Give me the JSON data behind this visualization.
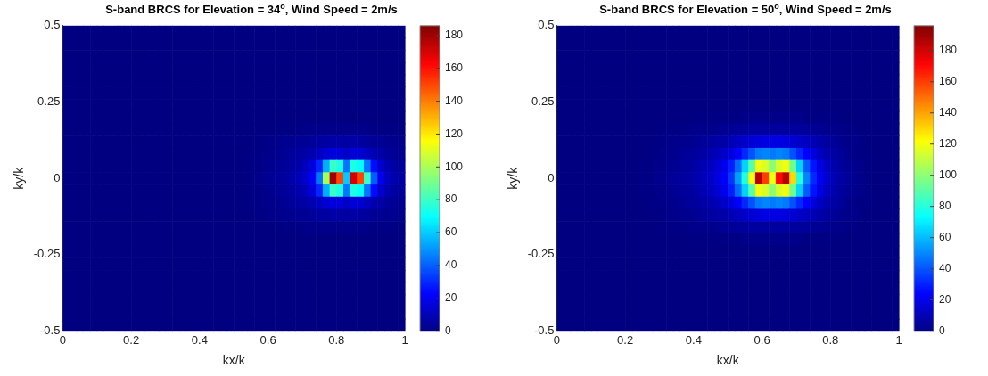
{
  "chart_data": [
    {
      "type": "heatmap",
      "title": "S-band BRCS for Elevation = 34$^{o}$, Wind Speed = 2m/s",
      "xlabel": "kx/k",
      "ylabel": "ky/k",
      "xlim": [
        0,
        1
      ],
      "ylim": [
        -0.5,
        0.5
      ],
      "xticks": [
        0,
        0.2,
        0.4,
        0.6,
        0.8,
        1
      ],
      "yticks": [
        -0.5,
        -0.25,
        0,
        0.25,
        0.5
      ],
      "clim": [
        0,
        186
      ],
      "cticks": [
        0,
        20,
        40,
        60,
        80,
        100,
        120,
        140,
        160,
        180
      ],
      "grid": false,
      "cells": [
        [
          0,
          0,
          0,
          0,
          0,
          0,
          0,
          0,
          0,
          0,
          0,
          0,
          0,
          0,
          0,
          0,
          0,
          0,
          0,
          0,
          0,
          0,
          0,
          0,
          0,
          0,
          0,
          0,
          0,
          0,
          0,
          0,
          0,
          0,
          0,
          0,
          0,
          0,
          0,
          0,
          0,
          0,
          0,
          0,
          0,
          0,
          0,
          0,
          0,
          0
        ],
        [
          0,
          0,
          0,
          0,
          0,
          0,
          0,
          0,
          0,
          0,
          0,
          0,
          0,
          0,
          0,
          0,
          0,
          0,
          0,
          0,
          0,
          0,
          0,
          0,
          0,
          0,
          0,
          0,
          0,
          0,
          0,
          0,
          0,
          0,
          0,
          0,
          0,
          0,
          0,
          0,
          0,
          0,
          0,
          0,
          0,
          0,
          0,
          0,
          0,
          0
        ],
        [
          0,
          0,
          0,
          0,
          0,
          0,
          0,
          0,
          0,
          0,
          0,
          0,
          0,
          0,
          0,
          0,
          0,
          0,
          0,
          0,
          0,
          0,
          0,
          0,
          0,
          0,
          0,
          0,
          0,
          0,
          0,
          0,
          0,
          0,
          0,
          0,
          0,
          0,
          0,
          0,
          0,
          0,
          0,
          0,
          0,
          0,
          0,
          0,
          0,
          0
        ],
        [
          0,
          0,
          0,
          0,
          0,
          0,
          0,
          0,
          0,
          0,
          0,
          0,
          0,
          0,
          0,
          0,
          0,
          0,
          0,
          0,
          0,
          0,
          0,
          0,
          0,
          0,
          0,
          0,
          0,
          0,
          0,
          0,
          0,
          0,
          0,
          0,
          0,
          0,
          0,
          0,
          0,
          0,
          0,
          0,
          0,
          0,
          0,
          0,
          0,
          0
        ],
        [
          0,
          0,
          0,
          0,
          0,
          0,
          0,
          0,
          0,
          0,
          0,
          0,
          0,
          0,
          0,
          0,
          0,
          0,
          0,
          0,
          0,
          0,
          0,
          0,
          0,
          0,
          0,
          0,
          0,
          0,
          0,
          0,
          0,
          0,
          0,
          0,
          0,
          0,
          0,
          0,
          0,
          0,
          0,
          0,
          0,
          0,
          0,
          0,
          0,
          0
        ],
        [
          0,
          0,
          0,
          0,
          0,
          0,
          0,
          0,
          0,
          0,
          0,
          0,
          0,
          0,
          0,
          0,
          0,
          0,
          0,
          0,
          0,
          0,
          0,
          0,
          0,
          0,
          0,
          0,
          0,
          0,
          0,
          0,
          0,
          0,
          0,
          0,
          0,
          0,
          0,
          0,
          0,
          0,
          0,
          0,
          0,
          0,
          0,
          0,
          0,
          0
        ],
        [
          0,
          0,
          0,
          0,
          0,
          0,
          0,
          0,
          0,
          0,
          0,
          0,
          0,
          0,
          0,
          0,
          0,
          0,
          0,
          0,
          0,
          0,
          0,
          0,
          0,
          0,
          0,
          0,
          0,
          0,
          0,
          0,
          0,
          0,
          0,
          0,
          0,
          0,
          0,
          0,
          0,
          0,
          0,
          0,
          0,
          0,
          0,
          0,
          0,
          0
        ],
        [
          0,
          0,
          0,
          0,
          0,
          0,
          0,
          0,
          0,
          0,
          0,
          0,
          0,
          0,
          0,
          0,
          0,
          0,
          0,
          0,
          0,
          0,
          0,
          0,
          0,
          0,
          0,
          0,
          0,
          0,
          0,
          0,
          0,
          0,
          0,
          0,
          0,
          0,
          0,
          0,
          0,
          0,
          0,
          0,
          0,
          0,
          0,
          0,
          0,
          0
        ],
        [
          0,
          0,
          0,
          0,
          0,
          0,
          0,
          0,
          0,
          0,
          0,
          0,
          0,
          0,
          0,
          0,
          0,
          0,
          0,
          0,
          0,
          0,
          0,
          0,
          0,
          0,
          0,
          0,
          0,
          0,
          0,
          1,
          1,
          1,
          1,
          2,
          2,
          2,
          2,
          2,
          2,
          2,
          2,
          2,
          2,
          1,
          1,
          1,
          1,
          0
        ],
        [
          0,
          0,
          0,
          0,
          0,
          0,
          0,
          0,
          0,
          0,
          0,
          0,
          0,
          0,
          0,
          0,
          0,
          0,
          0,
          0,
          0,
          0,
          0,
          0,
          0,
          0,
          0,
          0,
          1,
          1,
          2,
          2,
          3,
          3,
          4,
          4,
          5,
          6,
          6,
          7,
          7,
          6,
          7,
          6,
          5,
          4,
          4,
          3,
          3,
          2
        ],
        [
          0,
          0,
          0,
          0,
          0,
          0,
          0,
          0,
          0,
          0,
          0,
          0,
          0,
          0,
          0,
          0,
          0,
          0,
          0,
          0,
          0,
          0,
          0,
          0,
          0,
          0,
          0,
          1,
          1,
          2,
          2,
          3,
          4,
          5,
          6,
          7,
          9,
          12,
          15,
          17,
          16,
          13,
          16,
          15,
          12,
          9,
          7,
          5,
          4,
          3
        ],
        [
          0,
          0,
          0,
          0,
          0,
          0,
          0,
          0,
          0,
          0,
          0,
          0,
          0,
          0,
          0,
          0,
          0,
          0,
          0,
          0,
          0,
          0,
          0,
          0,
          0,
          0,
          0,
          1,
          1,
          2,
          3,
          4,
          5,
          6,
          8,
          11,
          17,
          30,
          55,
          80,
          75,
          45,
          75,
          70,
          45,
          25,
          14,
          9,
          6,
          5
        ],
        [
          0,
          0,
          0,
          0,
          0,
          0,
          0,
          0,
          0,
          0,
          0,
          0,
          0,
          0,
          0,
          0,
          0,
          0,
          0,
          0,
          0,
          0,
          0,
          0,
          0,
          0,
          0,
          1,
          2,
          3,
          4,
          5,
          6,
          8,
          10,
          14,
          22,
          45,
          100,
          180,
          150,
          60,
          170,
          150,
          80,
          40,
          20,
          12,
          8,
          6
        ],
        [
          0,
          0,
          0,
          0,
          0,
          0,
          0,
          0,
          0,
          0,
          0,
          0,
          0,
          0,
          0,
          0,
          0,
          0,
          0,
          0,
          0,
          0,
          0,
          0,
          0,
          0,
          0,
          1,
          1,
          2,
          3,
          4,
          5,
          6,
          8,
          11,
          17,
          30,
          55,
          80,
          75,
          45,
          75,
          70,
          45,
          25,
          14,
          9,
          6,
          5
        ],
        [
          0,
          0,
          0,
          0,
          0,
          0,
          0,
          0,
          0,
          0,
          0,
          0,
          0,
          0,
          0,
          0,
          0,
          0,
          0,
          0,
          0,
          0,
          0,
          0,
          0,
          0,
          0,
          1,
          1,
          2,
          2,
          3,
          4,
          5,
          6,
          7,
          9,
          12,
          15,
          17,
          16,
          13,
          16,
          15,
          12,
          9,
          7,
          5,
          4,
          3
        ],
        [
          0,
          0,
          0,
          0,
          0,
          0,
          0,
          0,
          0,
          0,
          0,
          0,
          0,
          0,
          0,
          0,
          0,
          0,
          0,
          0,
          0,
          0,
          0,
          0,
          0,
          0,
          0,
          0,
          1,
          1,
          2,
          2,
          3,
          3,
          4,
          4,
          5,
          6,
          6,
          7,
          7,
          6,
          7,
          6,
          5,
          4,
          4,
          3,
          3,
          2
        ],
        [
          0,
          0,
          0,
          0,
          0,
          0,
          0,
          0,
          0,
          0,
          0,
          0,
          0,
          0,
          0,
          0,
          0,
          0,
          0,
          0,
          0,
          0,
          0,
          0,
          0,
          0,
          0,
          0,
          0,
          0,
          0,
          1,
          1,
          1,
          1,
          2,
          2,
          2,
          2,
          2,
          2,
          2,
          2,
          2,
          2,
          1,
          1,
          1,
          1,
          0
        ],
        [
          0,
          0,
          0,
          0,
          0,
          0,
          0,
          0,
          0,
          0,
          0,
          0,
          0,
          0,
          0,
          0,
          0,
          0,
          0,
          0,
          0,
          0,
          0,
          0,
          0,
          0,
          0,
          0,
          0,
          0,
          0,
          0,
          0,
          0,
          0,
          0,
          0,
          0,
          0,
          0,
          0,
          0,
          0,
          0,
          0,
          0,
          0,
          0,
          0,
          0
        ],
        [
          0,
          0,
          0,
          0,
          0,
          0,
          0,
          0,
          0,
          0,
          0,
          0,
          0,
          0,
          0,
          0,
          0,
          0,
          0,
          0,
          0,
          0,
          0,
          0,
          0,
          0,
          0,
          0,
          0,
          0,
          0,
          0,
          0,
          0,
          0,
          0,
          0,
          0,
          0,
          0,
          0,
          0,
          0,
          0,
          0,
          0,
          0,
          0,
          0,
          0
        ],
        [
          0,
          0,
          0,
          0,
          0,
          0,
          0,
          0,
          0,
          0,
          0,
          0,
          0,
          0,
          0,
          0,
          0,
          0,
          0,
          0,
          0,
          0,
          0,
          0,
          0,
          0,
          0,
          0,
          0,
          0,
          0,
          0,
          0,
          0,
          0,
          0,
          0,
          0,
          0,
          0,
          0,
          0,
          0,
          0,
          0,
          0,
          0,
          0,
          0,
          0
        ],
        [
          0,
          0,
          0,
          0,
          0,
          0,
          0,
          0,
          0,
          0,
          0,
          0,
          0,
          0,
          0,
          0,
          0,
          0,
          0,
          0,
          0,
          0,
          0,
          0,
          0,
          0,
          0,
          0,
          0,
          0,
          0,
          0,
          0,
          0,
          0,
          0,
          0,
          0,
          0,
          0,
          0,
          0,
          0,
          0,
          0,
          0,
          0,
          0,
          0,
          0
        ],
        [
          0,
          0,
          0,
          0,
          0,
          0,
          0,
          0,
          0,
          0,
          0,
          0,
          0,
          0,
          0,
          0,
          0,
          0,
          0,
          0,
          0,
          0,
          0,
          0,
          0,
          0,
          0,
          0,
          0,
          0,
          0,
          0,
          0,
          0,
          0,
          0,
          0,
          0,
          0,
          0,
          0,
          0,
          0,
          0,
          0,
          0,
          0,
          0,
          0,
          0
        ],
        [
          0,
          0,
          0,
          0,
          0,
          0,
          0,
          0,
          0,
          0,
          0,
          0,
          0,
          0,
          0,
          0,
          0,
          0,
          0,
          0,
          0,
          0,
          0,
          0,
          0,
          0,
          0,
          0,
          0,
          0,
          0,
          0,
          0,
          0,
          0,
          0,
          0,
          0,
          0,
          0,
          0,
          0,
          0,
          0,
          0,
          0,
          0,
          0,
          0,
          0
        ],
        [
          0,
          0,
          0,
          0,
          0,
          0,
          0,
          0,
          0,
          0,
          0,
          0,
          0,
          0,
          0,
          0,
          0,
          0,
          0,
          0,
          0,
          0,
          0,
          0,
          0,
          0,
          0,
          0,
          0,
          0,
          0,
          0,
          0,
          0,
          0,
          0,
          0,
          0,
          0,
          0,
          0,
          0,
          0,
          0,
          0,
          0,
          0,
          0,
          0,
          0
        ],
        [
          0,
          0,
          0,
          0,
          0,
          0,
          0,
          0,
          0,
          0,
          0,
          0,
          0,
          0,
          0,
          0,
          0,
          0,
          0,
          0,
          0,
          0,
          0,
          0,
          0,
          0,
          0,
          0,
          0,
          0,
          0,
          0,
          0,
          0,
          0,
          0,
          0,
          0,
          0,
          0,
          0,
          0,
          0,
          0,
          0,
          0,
          0,
          0,
          0,
          0
        ]
      ]
    },
    {
      "type": "heatmap",
      "title": "S-band BRCS for Elevation = 50$^{o}$, Wind Speed = 2m/s",
      "xlabel": "kx/k",
      "ylabel": "ky/k",
      "xlim": [
        0,
        1
      ],
      "ylim": [
        -0.5,
        0.5
      ],
      "xticks": [
        0,
        0.2,
        0.4,
        0.6,
        0.8,
        1
      ],
      "yticks": [
        -0.5,
        -0.25,
        0,
        0.25,
        0.5
      ],
      "clim": [
        0,
        196
      ],
      "cticks": [
        0,
        20,
        40,
        60,
        80,
        100,
        120,
        140,
        160,
        180
      ],
      "grid": false,
      "cells": [
        [
          0,
          0,
          0,
          0,
          0,
          0,
          0,
          0,
          0,
          0,
          0,
          0,
          0,
          0,
          0,
          0,
          0,
          0,
          0,
          0,
          0,
          0,
          0,
          0,
          0,
          0,
          0,
          0,
          0,
          0,
          0,
          0,
          0,
          0,
          0,
          0,
          0,
          0,
          0,
          0,
          0,
          0,
          0,
          0,
          0,
          0,
          0,
          0,
          0,
          0
        ],
        [
          0,
          0,
          0,
          0,
          0,
          0,
          0,
          0,
          0,
          0,
          0,
          0,
          0,
          0,
          0,
          0,
          0,
          0,
          0,
          0,
          0,
          0,
          0,
          0,
          0,
          0,
          0,
          0,
          0,
          0,
          0,
          0,
          0,
          0,
          0,
          0,
          0,
          0,
          0,
          0,
          0,
          0,
          0,
          0,
          0,
          0,
          0,
          0,
          0,
          0
        ],
        [
          0,
          0,
          0,
          0,
          0,
          0,
          0,
          0,
          0,
          0,
          0,
          0,
          0,
          0,
          0,
          0,
          0,
          0,
          0,
          0,
          0,
          0,
          0,
          0,
          0,
          0,
          0,
          0,
          0,
          0,
          0,
          0,
          0,
          0,
          0,
          0,
          0,
          0,
          0,
          0,
          0,
          0,
          0,
          0,
          0,
          0,
          0,
          0,
          0,
          0
        ],
        [
          0,
          0,
          0,
          0,
          0,
          0,
          0,
          0,
          0,
          0,
          0,
          0,
          0,
          0,
          0,
          0,
          0,
          0,
          0,
          0,
          0,
          0,
          0,
          0,
          0,
          0,
          0,
          0,
          0,
          0,
          0,
          0,
          0,
          0,
          0,
          0,
          0,
          0,
          0,
          0,
          0,
          0,
          0,
          0,
          0,
          0,
          0,
          0,
          0,
          0
        ],
        [
          0,
          0,
          0,
          0,
          0,
          0,
          0,
          0,
          0,
          0,
          0,
          0,
          0,
          0,
          0,
          0,
          0,
          0,
          0,
          0,
          0,
          0,
          0,
          0,
          0,
          0,
          0,
          0,
          0,
          0,
          0,
          0,
          0,
          0,
          0,
          0,
          0,
          0,
          0,
          0,
          0,
          0,
          0,
          0,
          0,
          0,
          0,
          0,
          0,
          0
        ],
        [
          0,
          0,
          0,
          0,
          0,
          0,
          0,
          0,
          0,
          0,
          0,
          0,
          0,
          0,
          0,
          0,
          0,
          0,
          0,
          0,
          0,
          0,
          0,
          0,
          0,
          0,
          0,
          0,
          0,
          0,
          0,
          0,
          0,
          0,
          0,
          0,
          0,
          0,
          0,
          0,
          0,
          0,
          0,
          0,
          0,
          0,
          0,
          0,
          0,
          0
        ],
        [
          0,
          0,
          0,
          0,
          0,
          0,
          0,
          0,
          0,
          0,
          0,
          0,
          0,
          0,
          0,
          0,
          0,
          0,
          0,
          0,
          0,
          0,
          0,
          0,
          0,
          0,
          0,
          0,
          0,
          0,
          0,
          0,
          0,
          0,
          0,
          0,
          0,
          0,
          0,
          0,
          0,
          0,
          0,
          0,
          0,
          0,
          0,
          0,
          0,
          0
        ],
        [
          0,
          0,
          0,
          0,
          0,
          0,
          0,
          0,
          0,
          0,
          0,
          0,
          0,
          0,
          0,
          0,
          0,
          0,
          0,
          0,
          1,
          1,
          1,
          1,
          1,
          1,
          1,
          2,
          2,
          2,
          2,
          2,
          2,
          2,
          2,
          2,
          1,
          1,
          1,
          1,
          1,
          0,
          0,
          0,
          0,
          0,
          0,
          0,
          0,
          0
        ],
        [
          0,
          0,
          0,
          0,
          0,
          0,
          0,
          0,
          0,
          0,
          0,
          0,
          0,
          0,
          0,
          1,
          1,
          1,
          1,
          2,
          2,
          2,
          3,
          3,
          4,
          4,
          5,
          5,
          6,
          6,
          6,
          6,
          6,
          6,
          6,
          5,
          5,
          4,
          4,
          3,
          2,
          2,
          1,
          1,
          0,
          0,
          0,
          0,
          0,
          0
        ],
        [
          0,
          0,
          0,
          0,
          0,
          0,
          0,
          0,
          0,
          0,
          0,
          0,
          0,
          0,
          1,
          1,
          2,
          2,
          3,
          3,
          4,
          5,
          6,
          7,
          8,
          10,
          12,
          14,
          16,
          18,
          19,
          19,
          19,
          18,
          16,
          14,
          12,
          10,
          8,
          6,
          5,
          3,
          2,
          2,
          1,
          0,
          0,
          0,
          0,
          0
        ],
        [
          0,
          0,
          0,
          0,
          0,
          0,
          0,
          0,
          0,
          0,
          0,
          0,
          0,
          1,
          1,
          2,
          2,
          3,
          4,
          5,
          6,
          7,
          9,
          11,
          14,
          18,
          24,
          32,
          40,
          48,
          50,
          48,
          50,
          48,
          40,
          32,
          24,
          18,
          13,
          9,
          7,
          5,
          3,
          2,
          1,
          1,
          0,
          0,
          0,
          0
        ],
        [
          0,
          0,
          0,
          0,
          0,
          0,
          0,
          0,
          0,
          0,
          0,
          0,
          1,
          1,
          2,
          2,
          3,
          4,
          5,
          6,
          8,
          10,
          12,
          16,
          21,
          30,
          45,
          65,
          90,
          120,
          115,
          100,
          115,
          120,
          95,
          65,
          42,
          28,
          19,
          13,
          9,
          6,
          4,
          3,
          2,
          1,
          0,
          0,
          0,
          0
        ],
        [
          0,
          0,
          0,
          0,
          0,
          0,
          0,
          0,
          0,
          0,
          0,
          0,
          1,
          1,
          2,
          3,
          4,
          5,
          6,
          7,
          9,
          11,
          14,
          18,
          24,
          35,
          55,
          80,
          120,
          185,
          160,
          120,
          170,
          185,
          130,
          80,
          50,
          32,
          22,
          15,
          10,
          7,
          5,
          3,
          2,
          1,
          0,
          0,
          0,
          0
        ],
        [
          0,
          0,
          0,
          0,
          0,
          0,
          0,
          0,
          0,
          0,
          0,
          0,
          1,
          1,
          2,
          2,
          3,
          4,
          5,
          6,
          8,
          10,
          12,
          16,
          21,
          30,
          45,
          65,
          90,
          120,
          115,
          100,
          115,
          120,
          95,
          65,
          42,
          28,
          19,
          13,
          9,
          6,
          4,
          3,
          2,
          1,
          0,
          0,
          0,
          0
        ],
        [
          0,
          0,
          0,
          0,
          0,
          0,
          0,
          0,
          0,
          0,
          0,
          0,
          0,
          1,
          1,
          2,
          2,
          3,
          4,
          5,
          6,
          7,
          9,
          11,
          14,
          18,
          24,
          32,
          40,
          48,
          50,
          48,
          50,
          48,
          40,
          32,
          24,
          18,
          13,
          9,
          7,
          5,
          3,
          2,
          1,
          1,
          0,
          0,
          0,
          0
        ],
        [
          0,
          0,
          0,
          0,
          0,
          0,
          0,
          0,
          0,
          0,
          0,
          0,
          0,
          0,
          1,
          1,
          2,
          2,
          3,
          3,
          4,
          5,
          6,
          7,
          8,
          10,
          12,
          14,
          16,
          18,
          19,
          19,
          19,
          18,
          16,
          14,
          12,
          10,
          8,
          6,
          5,
          3,
          2,
          2,
          1,
          0,
          0,
          0,
          0,
          0
        ],
        [
          0,
          0,
          0,
          0,
          0,
          0,
          0,
          0,
          0,
          0,
          0,
          0,
          0,
          0,
          0,
          1,
          1,
          1,
          1,
          2,
          2,
          2,
          3,
          3,
          4,
          4,
          5,
          5,
          6,
          6,
          6,
          6,
          6,
          6,
          6,
          5,
          5,
          4,
          4,
          3,
          2,
          2,
          1,
          1,
          0,
          0,
          0,
          0,
          0,
          0
        ],
        [
          0,
          0,
          0,
          0,
          0,
          0,
          0,
          0,
          0,
          0,
          0,
          0,
          0,
          0,
          0,
          0,
          0,
          0,
          0,
          0,
          1,
          1,
          1,
          1,
          1,
          1,
          1,
          2,
          2,
          2,
          2,
          2,
          2,
          2,
          2,
          2,
          1,
          1,
          1,
          1,
          1,
          0,
          0,
          0,
          0,
          0,
          0,
          0,
          0,
          0
        ],
        [
          0,
          0,
          0,
          0,
          0,
          0,
          0,
          0,
          0,
          0,
          0,
          0,
          0,
          0,
          0,
          0,
          0,
          0,
          0,
          0,
          0,
          0,
          0,
          0,
          0,
          0,
          0,
          0,
          0,
          0,
          0,
          0,
          0,
          0,
          0,
          0,
          0,
          0,
          0,
          0,
          0,
          0,
          0,
          0,
          0,
          0,
          0,
          0,
          0,
          0
        ],
        [
          0,
          0,
          0,
          0,
          0,
          0,
          0,
          0,
          0,
          0,
          0,
          0,
          0,
          0,
          0,
          0,
          0,
          0,
          0,
          0,
          0,
          0,
          0,
          0,
          0,
          0,
          0,
          0,
          0,
          0,
          0,
          0,
          0,
          0,
          0,
          0,
          0,
          0,
          0,
          0,
          0,
          0,
          0,
          0,
          0,
          0,
          0,
          0,
          0,
          0
        ],
        [
          0,
          0,
          0,
          0,
          0,
          0,
          0,
          0,
          0,
          0,
          0,
          0,
          0,
          0,
          0,
          0,
          0,
          0,
          0,
          0,
          0,
          0,
          0,
          0,
          0,
          0,
          0,
          0,
          0,
          0,
          0,
          0,
          0,
          0,
          0,
          0,
          0,
          0,
          0,
          0,
          0,
          0,
          0,
          0,
          0,
          0,
          0,
          0,
          0,
          0
        ],
        [
          0,
          0,
          0,
          0,
          0,
          0,
          0,
          0,
          0,
          0,
          0,
          0,
          0,
          0,
          0,
          0,
          0,
          0,
          0,
          0,
          0,
          0,
          0,
          0,
          0,
          0,
          0,
          0,
          0,
          0,
          0,
          0,
          0,
          0,
          0,
          0,
          0,
          0,
          0,
          0,
          0,
          0,
          0,
          0,
          0,
          0,
          0,
          0,
          0,
          0
        ],
        [
          0,
          0,
          0,
          0,
          0,
          0,
          0,
          0,
          0,
          0,
          0,
          0,
          0,
          0,
          0,
          0,
          0,
          0,
          0,
          0,
          0,
          0,
          0,
          0,
          0,
          0,
          0,
          0,
          0,
          0,
          0,
          0,
          0,
          0,
          0,
          0,
          0,
          0,
          0,
          0,
          0,
          0,
          0,
          0,
          0,
          0,
          0,
          0,
          0,
          0
        ],
        [
          0,
          0,
          0,
          0,
          0,
          0,
          0,
          0,
          0,
          0,
          0,
          0,
          0,
          0,
          0,
          0,
          0,
          0,
          0,
          0,
          0,
          0,
          0,
          0,
          0,
          0,
          0,
          0,
          0,
          0,
          0,
          0,
          0,
          0,
          0,
          0,
          0,
          0,
          0,
          0,
          0,
          0,
          0,
          0,
          0,
          0,
          0,
          0,
          0,
          0
        ],
        [
          0,
          0,
          0,
          0,
          0,
          0,
          0,
          0,
          0,
          0,
          0,
          0,
          0,
          0,
          0,
          0,
          0,
          0,
          0,
          0,
          0,
          0,
          0,
          0,
          0,
          0,
          0,
          0,
          0,
          0,
          0,
          0,
          0,
          0,
          0,
          0,
          0,
          0,
          0,
          0,
          0,
          0,
          0,
          0,
          0,
          0,
          0,
          0,
          0,
          0
        ]
      ]
    }
  ]
}
